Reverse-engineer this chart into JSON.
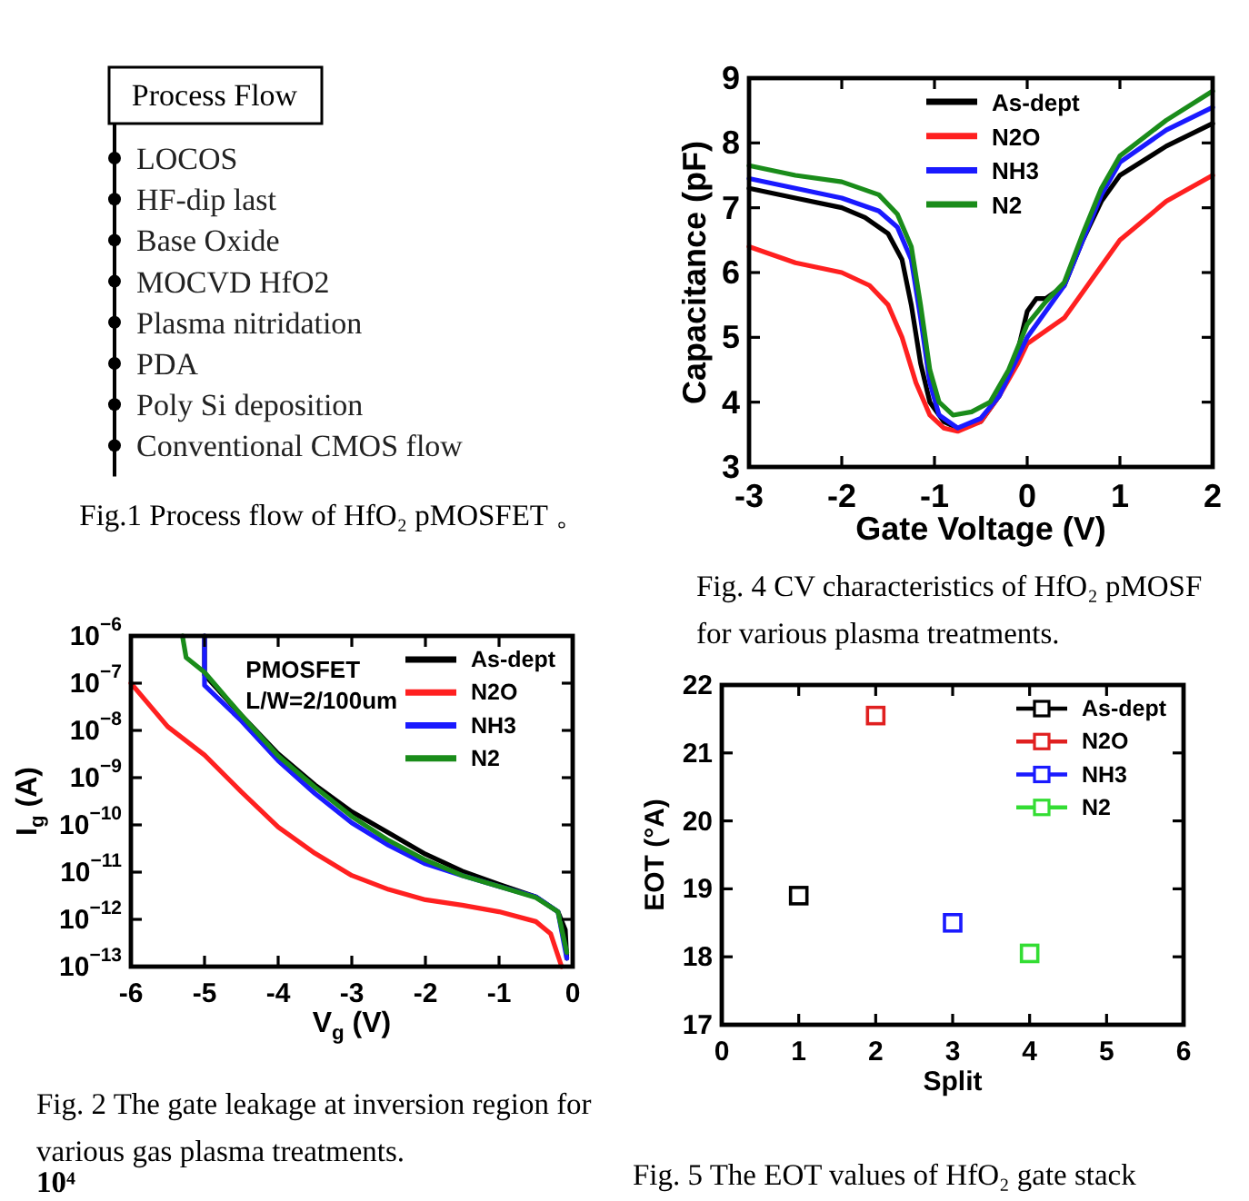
{
  "chart_data": [
    {
      "type": "other",
      "title": "Process Flow",
      "categories": [
        "LOCOS",
        "HF-dip last",
        "Base Oxide",
        "MOCVD HfO2",
        "Plasma nitridation",
        "PDA",
        "Poly Si deposition",
        "Conventional CMOS flow"
      ],
      "annotations": [
        "Fig.1 Process flow of HfO₂ pMOSFET 。"
      ]
    },
    {
      "type": "line",
      "xlabel": "Gate Voltage (V)",
      "ylabel": "Capacitance (pF)",
      "xlim": [
        -3,
        2
      ],
      "xticks": [
        -3,
        -2,
        -1,
        0,
        1,
        2
      ],
      "ylim": [
        3,
        9
      ],
      "yticks": [
        3,
        4,
        5,
        6,
        7,
        8,
        9
      ],
      "legend": "top",
      "grid": false,
      "annotations": [
        "Fig. 4 CV characteristics of HfO₂ pMOSF",
        "for various plasma treatments."
      ],
      "series": [
        {
          "name": "As-dept",
          "color": "#000000",
          "x": [
            -3,
            -2.5,
            -2,
            -1.75,
            -1.5,
            -1.35,
            -1.25,
            -1.15,
            -1.05,
            -0.9,
            -0.75,
            -0.5,
            -0.3,
            -0.1,
            0,
            0.1,
            0.2,
            0.4,
            0.6,
            0.8,
            1,
            1.5,
            2
          ],
          "values": [
            7.3,
            7.15,
            7.0,
            6.85,
            6.6,
            6.2,
            5.5,
            4.6,
            4.0,
            3.7,
            3.6,
            3.7,
            4.1,
            4.8,
            5.4,
            5.6,
            5.6,
            5.8,
            6.5,
            7.1,
            7.5,
            7.95,
            8.3
          ]
        },
        {
          "name": "N2O",
          "color": "#ff2020",
          "x": [
            -3,
            -2.5,
            -2,
            -1.7,
            -1.5,
            -1.35,
            -1.2,
            -1.05,
            -0.9,
            -0.75,
            -0.5,
            -0.3,
            -0.1,
            0,
            0.2,
            0.4,
            0.6,
            0.8,
            1,
            1.5,
            2
          ],
          "values": [
            6.4,
            6.15,
            6.0,
            5.8,
            5.5,
            5.0,
            4.3,
            3.8,
            3.6,
            3.55,
            3.7,
            4.1,
            4.6,
            4.9,
            5.1,
            5.3,
            5.7,
            6.1,
            6.5,
            7.1,
            7.5
          ]
        },
        {
          "name": "NH3",
          "color": "#1a1aff",
          "x": [
            -3,
            -2.5,
            -2,
            -1.6,
            -1.4,
            -1.25,
            -1.15,
            -1.05,
            -0.95,
            -0.75,
            -0.5,
            -0.3,
            -0.1,
            0,
            0.2,
            0.4,
            0.6,
            0.8,
            1,
            1.5,
            2
          ],
          "values": [
            7.45,
            7.3,
            7.15,
            6.95,
            6.7,
            6.2,
            5.3,
            4.3,
            3.8,
            3.6,
            3.75,
            4.1,
            4.7,
            5.0,
            5.4,
            5.8,
            6.5,
            7.2,
            7.7,
            8.2,
            8.55
          ]
        },
        {
          "name": "N2",
          "color": "#1a8c1a",
          "x": [
            -3,
            -2.5,
            -2,
            -1.6,
            -1.4,
            -1.25,
            -1.15,
            -1.05,
            -0.95,
            -0.8,
            -0.6,
            -0.4,
            -0.2,
            0,
            0.2,
            0.4,
            0.6,
            0.8,
            1,
            1.5,
            2
          ],
          "values": [
            7.65,
            7.5,
            7.4,
            7.2,
            6.9,
            6.4,
            5.5,
            4.5,
            4.0,
            3.8,
            3.85,
            4.0,
            4.5,
            5.2,
            5.55,
            5.85,
            6.6,
            7.3,
            7.8,
            8.35,
            8.8
          ]
        }
      ]
    },
    {
      "type": "line",
      "subtitle": "PMOSFET\nL/W=2/100um",
      "xlabel": "V$_{g}$ (V)",
      "ylabel": "I$_{g}$ (A)",
      "log": "y",
      "xlim": [
        -6,
        0
      ],
      "xticks": [
        -6,
        -5,
        -4,
        -3,
        -2,
        -1,
        0
      ],
      "ylim": [
        1e-13,
        1e-06
      ],
      "yticks": [
        {
          "value": 1e-13,
          "label": "10$^{−13}$"
        },
        {
          "value": 1e-12,
          "label": "10$^{−12}$"
        },
        {
          "value": 1e-11,
          "label": "10$^{−11}$"
        },
        {
          "value": 1e-10,
          "label": "10$^{−10}$"
        },
        {
          "value": 1e-09,
          "label": "10$^{−9}$"
        },
        {
          "value": 1e-08,
          "label": "10$^{−8}$"
        },
        {
          "value": 1e-07,
          "label": "10$^{−7}$"
        },
        {
          "value": 1e-06,
          "label": "10$^{−6}$"
        }
      ],
      "legend": "top right",
      "grid": false,
      "annotations": [
        "Fig. 2 The gate leakage at inversion region for",
        "various gas plasma treatments.",
        "10⁴"
      ],
      "series": [
        {
          "name": "As-dept",
          "color": "#000000",
          "x": [
            -5.0,
            -5.0,
            -4.5,
            -4,
            -3.5,
            -3,
            -2.5,
            -2,
            -1.5,
            -1,
            -0.5,
            -0.2,
            -0.1,
            -0.08
          ],
          "values": [
            1e-06,
            1.5e-07,
            2.1e-08,
            3.2e-09,
            7e-10,
            1.9e-10,
            6.8e-11,
            2.4e-11,
            1.05e-11,
            5.5e-12,
            3e-12,
            1.45e-12,
            6e-13,
            1.5e-13
          ]
        },
        {
          "name": "N2O",
          "color": "#ff2020",
          "x": [
            -6,
            -5.5,
            -5,
            -4.5,
            -4,
            -3.5,
            -3,
            -2.5,
            -2,
            -1.5,
            -1,
            -0.5,
            -0.3,
            -0.15
          ],
          "values": [
            1e-07,
            1.2e-08,
            3e-09,
            5e-10,
            9e-11,
            2.5e-11,
            8.5e-12,
            4.3e-12,
            2.6e-12,
            2e-12,
            1.45e-12,
            9e-13,
            5e-13,
            1e-13
          ]
        },
        {
          "name": "NH3",
          "color": "#1a1aff",
          "x": [
            -5.0,
            -5.0,
            -4.5,
            -4,
            -3.5,
            -3,
            -2.5,
            -2,
            -1.5,
            -1,
            -0.5,
            -0.2,
            -0.08
          ],
          "values": [
            1e-06,
            9e-08,
            1.6e-08,
            2.3e-09,
            4.6e-10,
            1.1e-10,
            3.7e-11,
            1.5e-11,
            8.5e-12,
            5e-12,
            3e-12,
            1.45e-12,
            1.5e-13
          ]
        },
        {
          "name": "N2",
          "color": "#1a8c1a",
          "x": [
            -5.3,
            -5.25,
            -5.0,
            -4.5,
            -4,
            -3.5,
            -3,
            -2.5,
            -2,
            -1.5,
            -1,
            -0.5,
            -0.2,
            -0.08
          ],
          "values": [
            1e-06,
            3.5e-07,
            1.7e-07,
            2.1e-08,
            2.9e-09,
            6.3e-10,
            1.5e-10,
            4.7e-11,
            1.8e-11,
            8.5e-12,
            5e-12,
            2.9e-12,
            1.45e-12,
            2e-13
          ]
        }
      ]
    },
    {
      "type": "scatter",
      "xlabel": "Split",
      "ylabel": "EOT (°A)",
      "xlim": [
        0,
        6
      ],
      "xticks": [
        0,
        1,
        2,
        3,
        4,
        5,
        6
      ],
      "ylim": [
        17,
        22
      ],
      "yticks": [
        17,
        18,
        19,
        20,
        21,
        22
      ],
      "legend": "top right",
      "marker": "square",
      "grid": false,
      "annotations": [
        "Fig. 5 The EOT values of HfO₂ gate stack"
      ],
      "series": [
        {
          "name": "As-dept",
          "color": "#000000",
          "x": [
            1
          ],
          "values": [
            18.9
          ]
        },
        {
          "name": "N2O",
          "color": "#e02020",
          "x": [
            2
          ],
          "values": [
            21.55
          ]
        },
        {
          "name": "NH3",
          "color": "#1a1aff",
          "x": [
            3
          ],
          "values": [
            18.5
          ]
        },
        {
          "name": "N2",
          "color": "#33dd33",
          "x": [
            4
          ],
          "values": [
            18.05
          ]
        }
      ]
    }
  ]
}
